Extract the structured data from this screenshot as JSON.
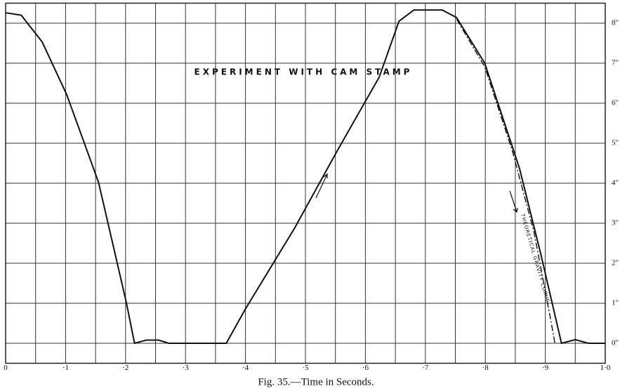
{
  "chart_data": {
    "type": "line",
    "title": "EXPERIMENT WITH CAM STAMP",
    "x_label": "Fig. 35.—Time in Seconds.",
    "annotation": "THEORETICAL GRAVITY CURVE",
    "xlim": [
      0,
      1.0
    ],
    "ylim": [
      -0.5,
      8.5
    ],
    "xticks": [
      0,
      {
        "value": 0.1,
        "label": "·1"
      },
      {
        "value": 0.2,
        "label": "·2"
      },
      {
        "value": 0.3,
        "label": "·3"
      },
      {
        "value": 0.4,
        "label": "·4"
      },
      {
        "value": 0.5,
        "label": "·5"
      },
      {
        "value": 0.6,
        "label": "·6"
      },
      {
        "value": 0.7,
        "label": "·7"
      },
      {
        "value": 0.8,
        "label": "·8"
      },
      {
        "value": 0.9,
        "label": "·9"
      },
      {
        "value": 1.0,
        "label": "1·0"
      }
    ],
    "x_minor_ticks": [
      0.05,
      0.15,
      0.25,
      0.35,
      0.45,
      0.55,
      0.65,
      0.75,
      0.85,
      0.95
    ],
    "yticks": [
      {
        "value": 0,
        "label": "0\""
      },
      {
        "value": 1,
        "label": "1\""
      },
      {
        "value": 2,
        "label": "2\""
      },
      {
        "value": 3,
        "label": "3\""
      },
      {
        "value": 4,
        "label": "4\""
      },
      {
        "value": 5,
        "label": "5\""
      },
      {
        "value": 6,
        "label": "6\""
      },
      {
        "value": 7,
        "label": "7\""
      },
      {
        "value": 8,
        "label": "8\""
      }
    ],
    "grid": true,
    "series": [
      {
        "style": "solid",
        "color": "#111111",
        "x": [
          0,
          0.026,
          0.061,
          0.102,
          0.155,
          0.201,
          0.215,
          0.235,
          0.255,
          0.272,
          0.368,
          0.4,
          0.482,
          0.553,
          0.623,
          0.656,
          0.681,
          0.728,
          0.752,
          0.799,
          0.857,
          0.892,
          0.927,
          0.95,
          0.972,
          1.0
        ],
        "values": [
          8.26,
          8.2,
          7.53,
          6.21,
          4.02,
          1.04,
          0,
          0.08,
          0.08,
          0,
          0,
          0.86,
          2.88,
          4.81,
          6.65,
          8.05,
          8.33,
          8.33,
          8.14,
          7.0,
          4.37,
          2.26,
          0,
          0.09,
          0,
          0
        ]
      },
      {
        "style": "dash-dot",
        "color": "#111111",
        "x": [
          0.752,
          0.799,
          0.845,
          0.881,
          0.91,
          0.916
        ],
        "values": [
          8.1,
          6.91,
          4.81,
          2.79,
          0.51,
          0
        ]
      }
    ]
  }
}
